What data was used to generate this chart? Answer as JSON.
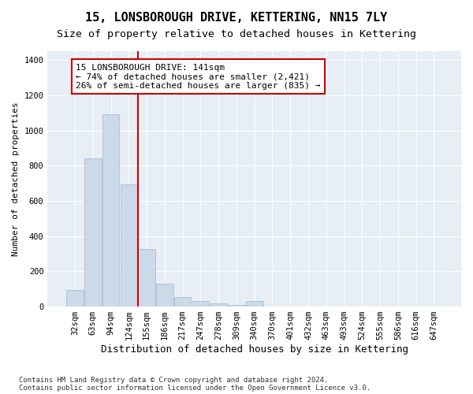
{
  "title": "15, LONSBOROUGH DRIVE, KETTERING, NN15 7LY",
  "subtitle": "Size of property relative to detached houses in Kettering",
  "xlabel": "Distribution of detached houses by size in Kettering",
  "ylabel": "Number of detached properties",
  "categories": [
    "32sqm",
    "63sqm",
    "94sqm",
    "124sqm",
    "155sqm",
    "186sqm",
    "217sqm",
    "247sqm",
    "278sqm",
    "309sqm",
    "340sqm",
    "370sqm",
    "401sqm",
    "432sqm",
    "463sqm",
    "493sqm",
    "524sqm",
    "555sqm",
    "586sqm",
    "616sqm",
    "647sqm"
  ],
  "values": [
    95,
    840,
    1090,
    695,
    325,
    130,
    55,
    30,
    20,
    10,
    30,
    0,
    0,
    0,
    0,
    0,
    0,
    0,
    0,
    0,
    0
  ],
  "bar_color": "#ccd9e8",
  "bar_edge_color": "#a0b8d0",
  "vline_color": "#cc0000",
  "vline_x_index": 3.5,
  "annotation_text": "15 LONSBOROUGH DRIVE: 141sqm\n← 74% of detached houses are smaller (2,421)\n26% of semi-detached houses are larger (835) →",
  "annotation_box_color": "#ffffff",
  "annotation_box_edge": "#cc0000",
  "ylim": [
    0,
    1450
  ],
  "yticks": [
    0,
    200,
    400,
    600,
    800,
    1000,
    1200,
    1400
  ],
  "background_color": "#ffffff",
  "plot_bg_color": "#e8eef5",
  "footer_text": "Contains HM Land Registry data © Crown copyright and database right 2024.\nContains public sector information licensed under the Open Government Licence v3.0.",
  "title_fontsize": 11,
  "subtitle_fontsize": 9.5,
  "xlabel_fontsize": 9,
  "ylabel_fontsize": 8,
  "tick_fontsize": 7.5,
  "annotation_fontsize": 8,
  "footer_fontsize": 6.5
}
